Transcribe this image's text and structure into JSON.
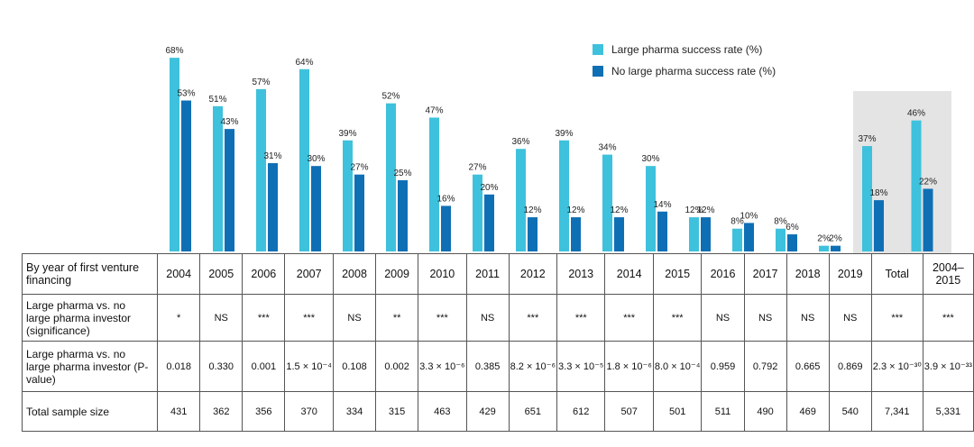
{
  "chart_data": {
    "type": "bar",
    "categories": [
      "2004",
      "2005",
      "2006",
      "2007",
      "2008",
      "2009",
      "2010",
      "2011",
      "2012",
      "2013",
      "2014",
      "2015",
      "2016",
      "2017",
      "2018",
      "2019",
      "Total",
      "2004–2015"
    ],
    "series": [
      {
        "name": "Large pharma success rate (%)",
        "color": "#3ec1dc",
        "values": [
          68,
          51,
          57,
          64,
          39,
          52,
          47,
          27,
          36,
          39,
          34,
          30,
          12,
          8,
          8,
          2,
          37,
          46
        ],
        "value_labels": [
          "68%",
          "51%",
          "57%",
          "64%",
          "39%",
          "52%",
          "47%",
          "27%",
          "36%",
          "39%",
          "34%",
          "30%",
          "12%",
          "8%",
          "8%",
          "2%",
          "37%",
          "46%"
        ]
      },
      {
        "name": "No large pharma success rate (%)",
        "color": "#0f6fb5",
        "values": [
          53,
          43,
          31,
          30,
          27,
          25,
          16,
          20,
          12,
          12,
          12,
          14,
          12,
          10,
          6,
          2,
          18,
          22
        ],
        "value_labels": [
          "53%",
          "43%",
          "31%",
          "30%",
          "27%",
          "25%",
          "16%",
          "20%",
          "12%",
          "12%",
          "12%",
          "14%",
          "12%",
          "10%",
          "6%",
          "2%",
          "18%",
          "22%"
        ]
      }
    ]
  },
  "table": {
    "header_label": "By year of first venture financing",
    "rows": [
      {
        "label": "Large pharma vs. no large pharma investor (significance)",
        "cells": [
          "*",
          "NS",
          "***",
          "***",
          "NS",
          "**",
          "***",
          "NS",
          "***",
          "***",
          "***",
          "***",
          "NS",
          "NS",
          "NS",
          "NS",
          "***",
          "***"
        ]
      },
      {
        "label": "Large pharma vs. no large pharma investor (P-value)",
        "cells": [
          "0.018",
          "0.330",
          "0.001",
          "1.5 × 10⁻⁴",
          "0.108",
          "0.002",
          "3.3 × 10⁻⁶",
          "0.385",
          "8.2 × 10⁻⁶",
          "3.3 × 10⁻⁵",
          "1.8 × 10⁻⁶",
          "8.0 × 10⁻⁴",
          "0.959",
          "0.792",
          "0.665",
          "0.869",
          "2.3 × 10⁻³⁰",
          "3.9 × 10⁻³³"
        ]
      },
      {
        "label": "Total sample size",
        "cells": [
          "431",
          "362",
          "356",
          "370",
          "334",
          "315",
          "463",
          "429",
          "651",
          "612",
          "507",
          "501",
          "511",
          "490",
          "469",
          "540",
          "7,341",
          "5,331"
        ]
      }
    ]
  }
}
